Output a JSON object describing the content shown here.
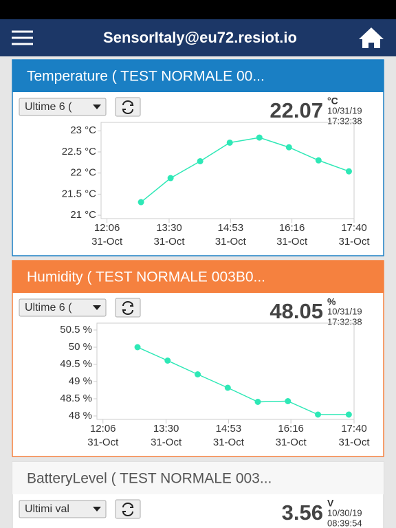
{
  "header": {
    "title": "SensorItaly@eu72.resiot.io"
  },
  "widgets": [
    {
      "title": "Temperature ( TEST NORMALE 00...",
      "period": "Ultime 6 (",
      "value": 22.07,
      "unit": "°C",
      "date": "10/31/19",
      "time": "17:32:38",
      "theme": "#1a7fc4",
      "chart_data": {
        "type": "line",
        "color": "#2ee8b6",
        "x": [
          772,
          812,
          852,
          892,
          932,
          972,
          1012,
          1053
        ],
        "values": [
          21.31,
          21.88,
          22.28,
          22.72,
          22.84,
          22.61,
          22.3,
          22.04
        ],
        "xlim": [
          718,
          1060
        ],
        "xticks": [
          {
            "value": 726,
            "label": "12:06",
            "date": "31-Oct"
          },
          {
            "value": 810,
            "label": "13:30",
            "date": "31-Oct"
          },
          {
            "value": 893,
            "label": "14:53",
            "date": "31-Oct"
          },
          {
            "value": 976,
            "label": "16:16",
            "date": "31-Oct"
          },
          {
            "value": 1060,
            "label": "17:40",
            "date": "31-Oct"
          }
        ],
        "ylim": [
          20.92,
          23.2
        ],
        "yticks": [
          {
            "value": 23,
            "label": "23 °C"
          },
          {
            "value": 22.5,
            "label": "22.5 °C"
          },
          {
            "value": 22,
            "label": "22 °C"
          },
          {
            "value": 21.5,
            "label": "21.5 °C"
          },
          {
            "value": 21,
            "label": "21 °C"
          }
        ]
      }
    },
    {
      "title": "Humidity ( TEST NORMALE 003B0...",
      "period": "Ultime 6 (",
      "value": 48.05,
      "unit": "%",
      "date": "10/31/19",
      "time": "17:32:38",
      "theme": "#f5813f",
      "chart_data": {
        "type": "line",
        "color": "#2ee8b6",
        "x": [
          772,
          812,
          852,
          892,
          932,
          972,
          1012,
          1053
        ],
        "values": [
          50.0,
          49.61,
          49.21,
          48.82,
          48.41,
          48.43,
          48.04,
          48.04
        ],
        "xlim": [
          718,
          1060
        ],
        "xticks": [
          {
            "value": 726,
            "label": "12:06",
            "date": "31-Oct"
          },
          {
            "value": 810,
            "label": "13:30",
            "date": "31-Oct"
          },
          {
            "value": 893,
            "label": "14:53",
            "date": "31-Oct"
          },
          {
            "value": 976,
            "label": "16:16",
            "date": "31-Oct"
          },
          {
            "value": 1060,
            "label": "17:40",
            "date": "31-Oct"
          }
        ],
        "ylim": [
          47.9,
          50.7
        ],
        "yticks": [
          {
            "value": 50.5,
            "label": "50.5 %"
          },
          {
            "value": 50,
            "label": "50 %"
          },
          {
            "value": 49.5,
            "label": "49.5 %"
          },
          {
            "value": 49,
            "label": "49 %"
          },
          {
            "value": 48.5,
            "label": "48.5 %"
          },
          {
            "value": 48,
            "label": "48 %"
          }
        ]
      }
    },
    {
      "title": "BatteryLevel ( TEST NORMALE 003...",
      "period": "Ultimi val",
      "value": 3.56,
      "unit": "V",
      "date": "10/30/19",
      "time": "08:39:54",
      "theme": "#f7f7f7"
    }
  ]
}
